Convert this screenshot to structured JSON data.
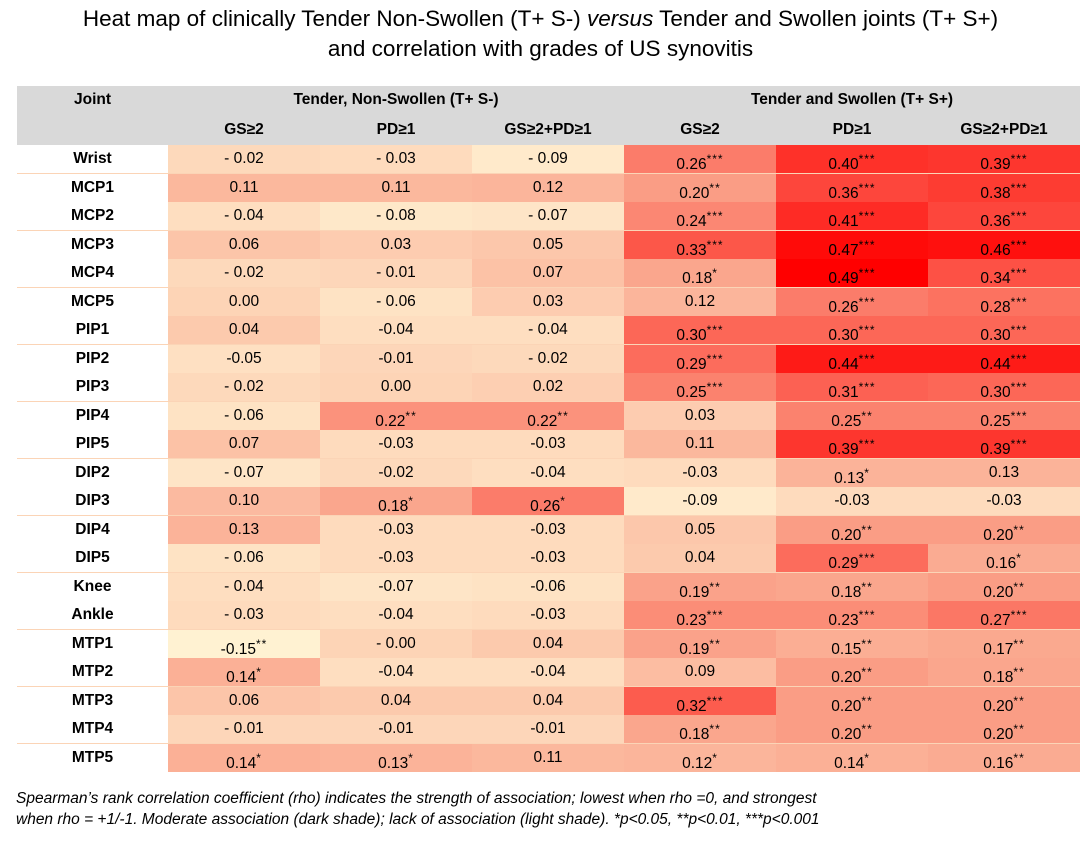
{
  "title_line1_a": "Heat map of clinically Tender Non-Swollen (T+ S-) ",
  "title_line1_italic": "versus",
  "title_line1_b": " Tender and Swollen joints (T+ S+)",
  "title_line2": "and correlation with grades of US synovitis",
  "header": {
    "joint": "Joint",
    "group1": "Tender, Non-Swollen (T+ S-)",
    "group2": "Tender and Swollen (T+ S+)",
    "subcolumns": [
      "GS≥2",
      "PD≥1",
      "GS≥2+PD≥1",
      "GS≥2",
      "PD≥1",
      "GS≥2+PD≥1"
    ]
  },
  "footnote_line1": "Spearman’s rank correlation coefficient (rho) indicates the strength of association; lowest when rho =0, and strongest",
  "footnote_line2": "when rho = +1/-1. Moderate association (dark shade); lack of association (light shade). *p<0.05, **p<0.01, ***p<0.001",
  "chart_data": {
    "type": "heatmap",
    "columns": [
      "T+ S- GS≥2",
      "T+ S- PD≥1",
      "T+ S- GS≥2+PD≥1",
      "T+ S+ GS≥2",
      "T+ S+ PD≥1",
      "T+ S+ GS≥2+PD≥1"
    ],
    "rows": [
      {
        "joint": "Wrist",
        "cells": [
          {
            "text": "- 0.02",
            "stars": ""
          },
          {
            "text": "- 0.03",
            "stars": ""
          },
          {
            "text": "- 0.09",
            "stars": ""
          },
          {
            "text": "0.26",
            "stars": "***"
          },
          {
            "text": "0.40",
            "stars": "***"
          },
          {
            "text": "0.39",
            "stars": "***"
          }
        ]
      },
      {
        "joint": "MCP1",
        "cells": [
          {
            "text": "0.11",
            "stars": ""
          },
          {
            "text": "0.11",
            "stars": ""
          },
          {
            "text": "0.12",
            "stars": ""
          },
          {
            "text": "0.20",
            "stars": "**"
          },
          {
            "text": "0.36",
            "stars": "***"
          },
          {
            "text": "0.38",
            "stars": "***"
          }
        ]
      },
      {
        "joint": "MCP2",
        "cells": [
          {
            "text": "- 0.04",
            "stars": ""
          },
          {
            "text": "- 0.08",
            "stars": ""
          },
          {
            "text": "- 0.07",
            "stars": ""
          },
          {
            "text": "0.24",
            "stars": "***"
          },
          {
            "text": "0.41",
            "stars": "***"
          },
          {
            "text": "0.36",
            "stars": "***"
          }
        ]
      },
      {
        "joint": "MCP3",
        "cells": [
          {
            "text": "0.06",
            "stars": ""
          },
          {
            "text": "0.03",
            "stars": ""
          },
          {
            "text": "0.05",
            "stars": ""
          },
          {
            "text": "0.33",
            "stars": "***"
          },
          {
            "text": "0.47",
            "stars": "***"
          },
          {
            "text": "0.46",
            "stars": "***"
          }
        ]
      },
      {
        "joint": "MCP4",
        "cells": [
          {
            "text": "- 0.02",
            "stars": ""
          },
          {
            "text": "- 0.01",
            "stars": ""
          },
          {
            "text": "0.07",
            "stars": ""
          },
          {
            "text": "0.18",
            "stars": "*"
          },
          {
            "text": "0.49",
            "stars": "***"
          },
          {
            "text": "0.34",
            "stars": "***"
          }
        ]
      },
      {
        "joint": "MCP5",
        "cells": [
          {
            "text": "0.00",
            "stars": ""
          },
          {
            "text": "- 0.06",
            "stars": ""
          },
          {
            "text": "0.03",
            "stars": ""
          },
          {
            "text": "0.12",
            "stars": ""
          },
          {
            "text": "0.26",
            "stars": "***"
          },
          {
            "text": "0.28",
            "stars": "***"
          }
        ]
      },
      {
        "joint": "PIP1",
        "cells": [
          {
            "text": "0.04",
            "stars": ""
          },
          {
            "text": "-0.04",
            "stars": ""
          },
          {
            "text": "- 0.04",
            "stars": ""
          },
          {
            "text": "0.30",
            "stars": "***"
          },
          {
            "text": "0.30",
            "stars": "***"
          },
          {
            "text": "0.30",
            "stars": "***"
          }
        ]
      },
      {
        "joint": "PIP2",
        "cells": [
          {
            "text": "-0.05",
            "stars": ""
          },
          {
            "text": "-0.01",
            "stars": ""
          },
          {
            "text": "- 0.02",
            "stars": ""
          },
          {
            "text": "0.29",
            "stars": "***"
          },
          {
            "text": "0.44",
            "stars": "***"
          },
          {
            "text": "0.44",
            "stars": "***"
          }
        ]
      },
      {
        "joint": "PIP3",
        "cells": [
          {
            "text": "- 0.02",
            "stars": ""
          },
          {
            "text": "0.00",
            "stars": ""
          },
          {
            "text": "0.02",
            "stars": ""
          },
          {
            "text": "0.25",
            "stars": "***"
          },
          {
            "text": "0.31",
            "stars": "***"
          },
          {
            "text": "0.30",
            "stars": "***"
          }
        ]
      },
      {
        "joint": "PIP4",
        "cells": [
          {
            "text": "- 0.06",
            "stars": ""
          },
          {
            "text": "0.22",
            "stars": "**"
          },
          {
            "text": "0.22",
            "stars": "**"
          },
          {
            "text": "0.03",
            "stars": ""
          },
          {
            "text": "0.25",
            "stars": "**"
          },
          {
            "text": "0.25",
            "stars": "***"
          }
        ]
      },
      {
        "joint": "PIP5",
        "cells": [
          {
            "text": "0.07",
            "stars": ""
          },
          {
            "text": "-0.03",
            "stars": ""
          },
          {
            "text": "-0.03",
            "stars": ""
          },
          {
            "text": "0.11",
            "stars": ""
          },
          {
            "text": "0.39",
            "stars": "***"
          },
          {
            "text": "0.39",
            "stars": "***"
          }
        ]
      },
      {
        "joint": "DIP2",
        "cells": [
          {
            "text": "- 0.07",
            "stars": ""
          },
          {
            "text": "-0.02",
            "stars": ""
          },
          {
            "text": "-0.04",
            "stars": ""
          },
          {
            "text": "-0.03",
            "stars": ""
          },
          {
            "text": "0.13",
            "stars": "*"
          },
          {
            "text": "0.13",
            "stars": ""
          }
        ]
      },
      {
        "joint": "DIP3",
        "cells": [
          {
            "text": "0.10",
            "stars": ""
          },
          {
            "text": "0.18",
            "stars": "*"
          },
          {
            "text": "0.26",
            "stars": "*"
          },
          {
            "text": "-0.09",
            "stars": ""
          },
          {
            "text": "-0.03",
            "stars": ""
          },
          {
            "text": "-0.03",
            "stars": ""
          }
        ]
      },
      {
        "joint": "DIP4",
        "cells": [
          {
            "text": "0.13",
            "stars": ""
          },
          {
            "text": "-0.03",
            "stars": ""
          },
          {
            "text": "-0.03",
            "stars": ""
          },
          {
            "text": "0.05",
            "stars": ""
          },
          {
            "text": "0.20",
            "stars": "**"
          },
          {
            "text": "0.20",
            "stars": "**"
          }
        ]
      },
      {
        "joint": "DIP5",
        "cells": [
          {
            "text": "- 0.06",
            "stars": ""
          },
          {
            "text": "-0.03",
            "stars": ""
          },
          {
            "text": "-0.03",
            "stars": ""
          },
          {
            "text": "0.04",
            "stars": ""
          },
          {
            "text": "0.29",
            "stars": "***"
          },
          {
            "text": "0.16",
            "stars": "*"
          }
        ]
      },
      {
        "joint": "Knee",
        "cells": [
          {
            "text": "- 0.04",
            "stars": ""
          },
          {
            "text": "-0.07",
            "stars": ""
          },
          {
            "text": "-0.06",
            "stars": ""
          },
          {
            "text": "0.19",
            "stars": "**"
          },
          {
            "text": "0.18",
            "stars": "**"
          },
          {
            "text": "0.20",
            "stars": "**"
          }
        ]
      },
      {
        "joint": "Ankle",
        "cells": [
          {
            "text": "- 0.03",
            "stars": ""
          },
          {
            "text": "-0.04",
            "stars": ""
          },
          {
            "text": "-0.03",
            "stars": ""
          },
          {
            "text": "0.23",
            "stars": "***"
          },
          {
            "text": "0.23",
            "stars": "***"
          },
          {
            "text": "0.27",
            "stars": "***"
          }
        ]
      },
      {
        "joint": "MTP1",
        "cells": [
          {
            "text": "-0.15",
            "stars": "**"
          },
          {
            "text": "- 0.00",
            "stars": ""
          },
          {
            "text": "0.04",
            "stars": ""
          },
          {
            "text": "0.19",
            "stars": "**"
          },
          {
            "text": "0.15",
            "stars": "**"
          },
          {
            "text": "0.17",
            "stars": "**"
          }
        ]
      },
      {
        "joint": "MTP2",
        "cells": [
          {
            "text": "0.14",
            "stars": "*"
          },
          {
            "text": "-0.04",
            "stars": ""
          },
          {
            "text": "-0.04",
            "stars": ""
          },
          {
            "text": "0.09",
            "stars": ""
          },
          {
            "text": "0.20",
            "stars": "**"
          },
          {
            "text": "0.18",
            "stars": "**"
          }
        ]
      },
      {
        "joint": "MTP3",
        "cells": [
          {
            "text": "0.06",
            "stars": ""
          },
          {
            "text": "0.04",
            "stars": ""
          },
          {
            "text": "0.04",
            "stars": ""
          },
          {
            "text": "0.32",
            "stars": "***"
          },
          {
            "text": "0.20",
            "stars": "**"
          },
          {
            "text": "0.20",
            "stars": "**"
          }
        ]
      },
      {
        "joint": "MTP4",
        "cells": [
          {
            "text": "- 0.01",
            "stars": ""
          },
          {
            "text": "-0.01",
            "stars": ""
          },
          {
            "text": "-0.01",
            "stars": ""
          },
          {
            "text": "0.18",
            "stars": "**"
          },
          {
            "text": "0.20",
            "stars": "**"
          },
          {
            "text": "0.20",
            "stars": "**"
          }
        ]
      },
      {
        "joint": "MTP5",
        "cells": [
          {
            "text": "0.14",
            "stars": "*"
          },
          {
            "text": "0.13",
            "stars": "*"
          },
          {
            "text": "0.11",
            "stars": ""
          },
          {
            "text": "0.12",
            "stars": "*"
          },
          {
            "text": "0.14",
            "stars": "*"
          },
          {
            "text": "0.16",
            "stars": "**"
          }
        ]
      }
    ]
  }
}
